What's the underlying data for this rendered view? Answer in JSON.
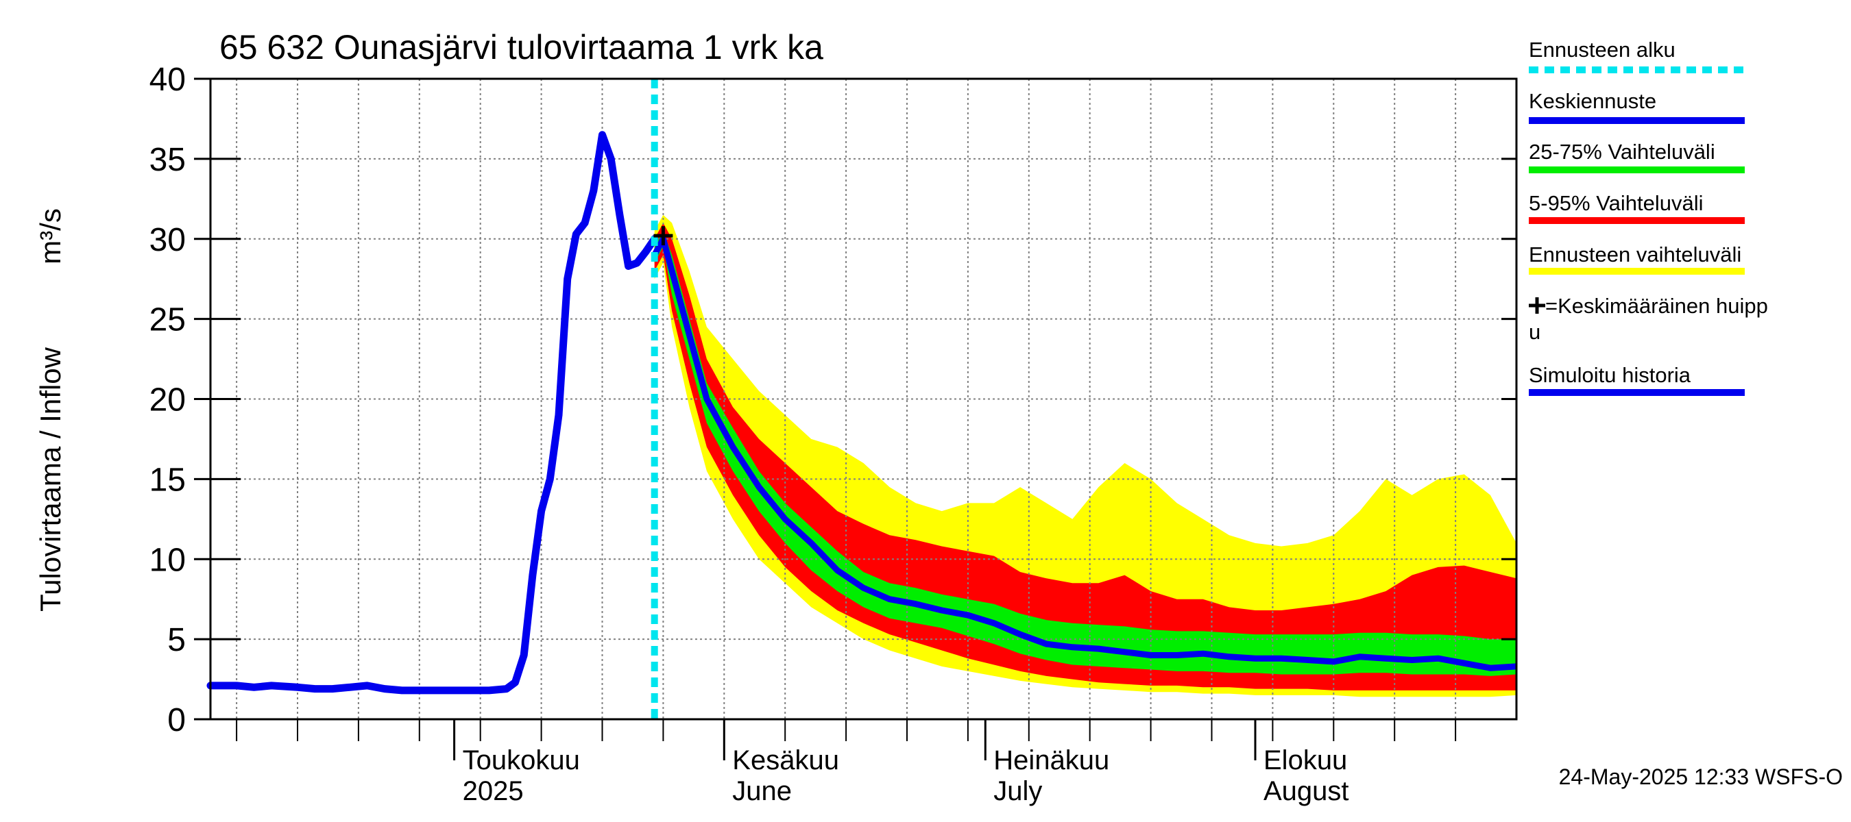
{
  "chart_data": {
    "type": "area",
    "title": "65 632 Ounasjärvi tulovirtaama 1 vrk ka",
    "ylabel": "Tulovirtaama / Inflow",
    "yunit": "m³/s",
    "ylim": [
      0,
      40
    ],
    "yticks": [
      0,
      5,
      10,
      15,
      20,
      25,
      30,
      35,
      40
    ],
    "xlim": [
      "2025-04-03",
      "2025-08-31"
    ],
    "x_month_labels": [
      {
        "date": "2025-05-01",
        "line1": "Toukokuu",
        "line2": "2025"
      },
      {
        "date": "2025-06-01",
        "line1": "Kesäkuu",
        "line2": "June"
      },
      {
        "date": "2025-07-01",
        "line1": "Heinäkuu",
        "line2": "July"
      },
      {
        "date": "2025-08-01",
        "line1": "Elokuu",
        "line2": "August"
      }
    ],
    "grid": true,
    "forecast_start": "2025-05-24",
    "mean_peak": {
      "date": "2025-05-25",
      "value": 30.2
    },
    "history": {
      "name": "Simuloitu historia",
      "color": "#0000ee",
      "points": [
        [
          "2025-04-03",
          2.1
        ],
        [
          "2025-04-06",
          2.1
        ],
        [
          "2025-04-08",
          2.0
        ],
        [
          "2025-04-10",
          2.1
        ],
        [
          "2025-04-13",
          2.0
        ],
        [
          "2025-04-15",
          1.9
        ],
        [
          "2025-04-17",
          1.9
        ],
        [
          "2025-04-19",
          2.0
        ],
        [
          "2025-04-21",
          2.1
        ],
        [
          "2025-04-23",
          1.9
        ],
        [
          "2025-04-25",
          1.8
        ],
        [
          "2025-04-27",
          1.8
        ],
        [
          "2025-04-29",
          1.8
        ],
        [
          "2025-05-01",
          1.8
        ],
        [
          "2025-05-03",
          1.8
        ],
        [
          "2025-05-05",
          1.8
        ],
        [
          "2025-05-07",
          1.9
        ],
        [
          "2025-05-08",
          2.3
        ],
        [
          "2025-05-09",
          4.0
        ],
        [
          "2025-05-10",
          9.0
        ],
        [
          "2025-05-11",
          13.0
        ],
        [
          "2025-05-12",
          15.0
        ],
        [
          "2025-05-13",
          19.0
        ],
        [
          "2025-05-14",
          27.5
        ],
        [
          "2025-05-15",
          30.3
        ],
        [
          "2025-05-16",
          31.0
        ],
        [
          "2025-05-17",
          33.0
        ],
        [
          "2025-05-18",
          36.5
        ],
        [
          "2025-05-19",
          35.0
        ],
        [
          "2025-05-20",
          31.5
        ],
        [
          "2025-05-21",
          28.3
        ],
        [
          "2025-05-22",
          28.5
        ],
        [
          "2025-05-23",
          29.2
        ],
        [
          "2025-05-24",
          30.0
        ]
      ]
    },
    "forecast": {
      "x": [
        "2025-05-24",
        "2025-05-25",
        "2025-05-26",
        "2025-05-28",
        "2025-05-30",
        "2025-06-02",
        "2025-06-05",
        "2025-06-08",
        "2025-06-11",
        "2025-06-14",
        "2025-06-17",
        "2025-06-20",
        "2025-06-23",
        "2025-06-26",
        "2025-06-29",
        "2025-07-02",
        "2025-07-05",
        "2025-07-08",
        "2025-07-11",
        "2025-07-14",
        "2025-07-17",
        "2025-07-20",
        "2025-07-23",
        "2025-07-26",
        "2025-07-29",
        "2025-08-01",
        "2025-08-04",
        "2025-08-07",
        "2025-08-10",
        "2025-08-13",
        "2025-08-16",
        "2025-08-19",
        "2025-08-22",
        "2025-08-25",
        "2025-08-28",
        "2025-08-31"
      ],
      "median": [
        29.0,
        30.0,
        28.0,
        24.0,
        20.0,
        17.0,
        14.5,
        12.5,
        11.0,
        9.3,
        8.2,
        7.5,
        7.2,
        6.8,
        6.5,
        6.0,
        5.3,
        4.7,
        4.5,
        4.4,
        4.2,
        4.0,
        4.0,
        4.1,
        3.9,
        3.8,
        3.8,
        3.7,
        3.6,
        3.9,
        3.8,
        3.7,
        3.8,
        3.5,
        3.2,
        3.3
      ],
      "p25": [
        28.5,
        29.5,
        26.5,
        22.5,
        18.5,
        15.5,
        13.0,
        11.0,
        9.3,
        8.0,
        7.0,
        6.3,
        6.0,
        5.7,
        5.2,
        4.7,
        4.1,
        3.7,
        3.4,
        3.3,
        3.2,
        3.1,
        3.0,
        3.0,
        2.9,
        2.9,
        2.8,
        2.8,
        2.8,
        2.9,
        2.9,
        2.8,
        2.8,
        2.8,
        2.7,
        2.8
      ],
      "p75": [
        29.5,
        30.5,
        29.0,
        25.0,
        21.0,
        18.2,
        15.5,
        13.5,
        12.0,
        10.5,
        9.2,
        8.5,
        8.2,
        7.8,
        7.5,
        7.2,
        6.6,
        6.2,
        6.0,
        5.9,
        5.8,
        5.6,
        5.5,
        5.5,
        5.4,
        5.3,
        5.3,
        5.3,
        5.3,
        5.4,
        5.4,
        5.3,
        5.3,
        5.2,
        5.0,
        5.0
      ],
      "p5": [
        28.0,
        29.0,
        25.5,
        21.0,
        17.0,
        14.0,
        11.5,
        9.5,
        8.0,
        6.8,
        6.0,
        5.3,
        4.8,
        4.3,
        3.8,
        3.4,
        3.0,
        2.7,
        2.5,
        2.3,
        2.2,
        2.1,
        2.1,
        2.0,
        2.0,
        1.9,
        1.9,
        1.9,
        1.8,
        1.8,
        1.8,
        1.8,
        1.8,
        1.8,
        1.8,
        1.8
      ],
      "p95": [
        30.0,
        31.0,
        30.0,
        26.5,
        22.5,
        19.5,
        17.5,
        16.0,
        14.5,
        13.0,
        12.2,
        11.5,
        11.2,
        10.8,
        10.5,
        10.2,
        9.2,
        8.8,
        8.5,
        8.5,
        9.0,
        8.0,
        7.5,
        7.5,
        7.0,
        6.8,
        6.8,
        7.0,
        7.2,
        7.5,
        8.0,
        9.0,
        9.5,
        9.6,
        9.2,
        8.8
      ],
      "range_min": [
        27.5,
        28.5,
        24.5,
        19.5,
        15.5,
        12.5,
        10.0,
        8.5,
        7.0,
        6.0,
        5.0,
        4.3,
        3.8,
        3.3,
        3.0,
        2.7,
        2.4,
        2.2,
        2.0,
        1.9,
        1.8,
        1.7,
        1.7,
        1.6,
        1.6,
        1.5,
        1.5,
        1.5,
        1.5,
        1.4,
        1.4,
        1.4,
        1.4,
        1.4,
        1.4,
        1.5
      ],
      "range_max": [
        30.5,
        31.5,
        31.0,
        28.0,
        24.5,
        22.5,
        20.5,
        19.0,
        17.5,
        17.0,
        16.0,
        14.5,
        13.5,
        13.0,
        13.5,
        13.5,
        14.5,
        13.5,
        12.5,
        14.5,
        16.0,
        15.0,
        13.5,
        12.5,
        11.5,
        11.0,
        10.8,
        11.0,
        11.5,
        13.0,
        15.0,
        14.0,
        15.0,
        15.3,
        14.0,
        11.0
      ]
    },
    "legend": [
      {
        "label": "Ennusteen alku",
        "color": "#00e5ee",
        "style": "dotted"
      },
      {
        "label": "Keskiennuste",
        "color": "#0000ee",
        "style": "line"
      },
      {
        "label": "25-75% Vaihteluväli",
        "color": "#00ee00",
        "style": "line"
      },
      {
        "label": "5-95% Vaihteluväli",
        "color": "#ff0000",
        "style": "line"
      },
      {
        "label": "Ennusteen vaihteluväli",
        "color": "#ffff00",
        "style": "line"
      },
      {
        "label": "=Keskimääräinen huipp",
        "label2": "u",
        "color": "#000000",
        "style": "cross"
      },
      {
        "label": "Simuloitu historia",
        "color": "#0000ee",
        "style": "line"
      }
    ],
    "legend_position": "right"
  },
  "timestamp": "24-May-2025 12:33 WSFS-O"
}
